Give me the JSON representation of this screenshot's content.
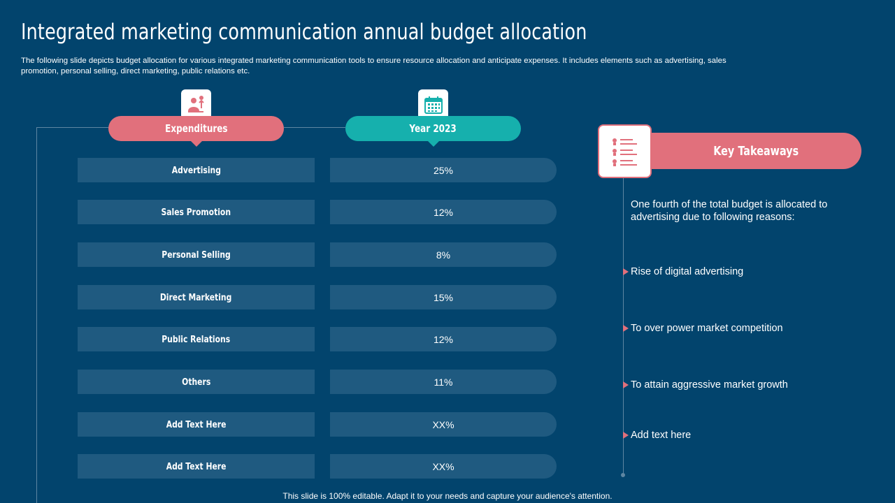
{
  "title": "Integrated marketing communication annual budget allocation",
  "subtitle": "The following slide depicts budget allocation for various integrated marketing communication tools to ensure resource allocation and anticipate expenses. It includes elements such as advertising, sales promotion, personal selling, direct marketing, public relations etc.",
  "table": {
    "col1_header": "Expenditures",
    "col2_header": "Year 2023",
    "rows": [
      {
        "label": "Advertising",
        "value": "25%"
      },
      {
        "label": "Sales Promotion",
        "value": "12%"
      },
      {
        "label": "Personal Selling",
        "value": "8%"
      },
      {
        "label": "Direct Marketing",
        "value": "15%"
      },
      {
        "label": "Public Relations",
        "value": "12%"
      },
      {
        "label": "Others",
        "value": "11%"
      },
      {
        "label": "Add Text Here",
        "value": "XX%"
      },
      {
        "label": "Add Text Here",
        "value": "XX%"
      }
    ]
  },
  "takeaways": {
    "title": "Key Takeaways",
    "intro": "One fourth of the total budget is allocated to advertising due to following reasons:",
    "points": [
      "Rise of digital advertising",
      "To over power market competition",
      "To attain aggressive market growth",
      "Add text here"
    ]
  },
  "footer": "This slide is 100% editable. Adapt it to your needs and capture your audience's attention.",
  "colors": {
    "background": "#02446d",
    "accent_pink": "#e1707c",
    "accent_teal": "#16b0ad",
    "row_fill": "#1f5a80"
  },
  "icons": {
    "expenditures": "person-money-icon",
    "year": "calendar-icon",
    "takeaways": "checklist-icon"
  }
}
